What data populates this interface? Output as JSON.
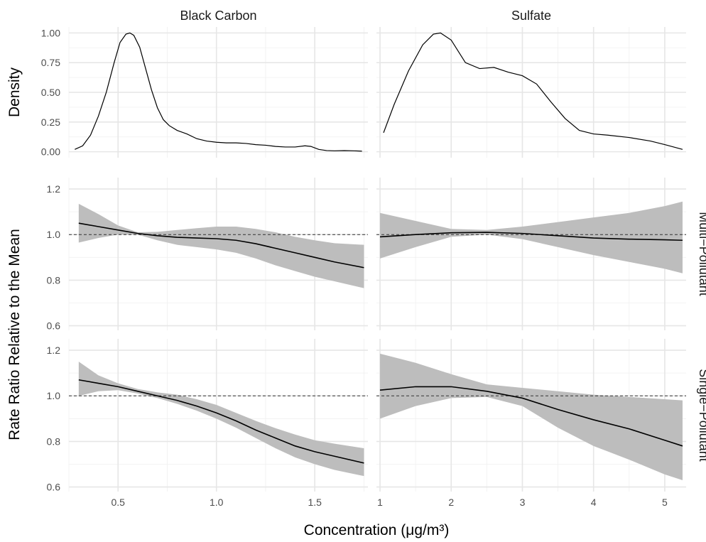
{
  "chart_data": {
    "type": "line",
    "xlabel": "Concentration (μg/m³)",
    "ylabel_density": "Density",
    "ylabel_ratio": "Rate Ratio Relative to the Mean",
    "colors": {
      "band": "#bdbdbd",
      "line": "#000000",
      "grid": "#e6e6e6"
    },
    "columns": [
      {
        "name": "Black Carbon",
        "xlim": [
          0.25,
          1.77
        ],
        "xticks": [
          0.5,
          1.0,
          1.5
        ],
        "xtick_labels": [
          "0.5",
          "1.0",
          "1.5"
        ]
      },
      {
        "name": "Sulfate",
        "xlim": [
          0.95,
          5.3
        ],
        "xticks": [
          1,
          2,
          3,
          4,
          5
        ],
        "xtick_labels": [
          "1",
          "2",
          "3",
          "4",
          "5"
        ]
      }
    ],
    "rows": [
      {
        "name": "Density",
        "ylim": [
          -0.05,
          1.05
        ],
        "yticks": [
          0,
          0.25,
          0.5,
          0.75,
          1.0
        ],
        "ytick_labels": [
          "0.00",
          "0.25",
          "0.50",
          "0.75",
          "1.00"
        ],
        "strip": ""
      },
      {
        "name": "Multi-Pollutant",
        "ylim": [
          0.58,
          1.25
        ],
        "yticks": [
          0.6,
          0.8,
          1.0,
          1.2
        ],
        "ytick_labels": [
          "0.6",
          "0.8",
          "1.0",
          "1.2"
        ],
        "strip": "Multi−Pollutant",
        "reference": 1.0
      },
      {
        "name": "Single-Pollutant",
        "ylim": [
          0.58,
          1.25
        ],
        "yticks": [
          0.6,
          0.8,
          1.0,
          1.2
        ],
        "ytick_labels": [
          "0.6",
          "0.8",
          "1.0",
          "1.2"
        ],
        "strip": "Single−Pollutant",
        "reference": 1.0
      }
    ],
    "density": [
      {
        "x": [
          0.28,
          0.32,
          0.36,
          0.4,
          0.44,
          0.48,
          0.51,
          0.54,
          0.56,
          0.58,
          0.61,
          0.64,
          0.67,
          0.7,
          0.73,
          0.76,
          0.8,
          0.85,
          0.9,
          0.95,
          1.0,
          1.05,
          1.1,
          1.15,
          1.2,
          1.25,
          1.3,
          1.35,
          1.4,
          1.45,
          1.48,
          1.52,
          1.56,
          1.6,
          1.65,
          1.7,
          1.74
        ],
        "y": [
          0.02,
          0.05,
          0.14,
          0.3,
          0.5,
          0.75,
          0.92,
          0.99,
          1.0,
          0.98,
          0.88,
          0.7,
          0.52,
          0.37,
          0.27,
          0.22,
          0.18,
          0.15,
          0.11,
          0.09,
          0.08,
          0.075,
          0.075,
          0.07,
          0.06,
          0.055,
          0.045,
          0.04,
          0.04,
          0.05,
          0.045,
          0.02,
          0.01,
          0.008,
          0.01,
          0.008,
          0.005
        ]
      },
      {
        "x": [
          1.05,
          1.2,
          1.4,
          1.6,
          1.75,
          1.85,
          2.0,
          2.2,
          2.4,
          2.6,
          2.8,
          3.0,
          3.2,
          3.4,
          3.6,
          3.8,
          4.0,
          4.2,
          4.5,
          4.8,
          5.0,
          5.25
        ],
        "y": [
          0.16,
          0.4,
          0.68,
          0.9,
          0.99,
          1.0,
          0.94,
          0.75,
          0.7,
          0.71,
          0.67,
          0.64,
          0.57,
          0.42,
          0.28,
          0.18,
          0.15,
          0.14,
          0.12,
          0.09,
          0.06,
          0.02
        ]
      }
    ],
    "panels": [
      {
        "column": "Black Carbon",
        "row": "Multi-Pollutant",
        "x": [
          0.3,
          0.4,
          0.5,
          0.6,
          0.7,
          0.8,
          0.9,
          1.0,
          1.1,
          1.2,
          1.3,
          1.4,
          1.5,
          1.6,
          1.75
        ],
        "fit": [
          1.05,
          1.035,
          1.02,
          1.005,
          0.995,
          0.988,
          0.985,
          0.982,
          0.975,
          0.96,
          0.94,
          0.92,
          0.9,
          0.88,
          0.855
        ],
        "lower": [
          0.965,
          0.985,
          1.0,
          1.0,
          0.975,
          0.955,
          0.945,
          0.935,
          0.92,
          0.895,
          0.865,
          0.84,
          0.815,
          0.795,
          0.765
        ],
        "upper": [
          1.135,
          1.09,
          1.04,
          1.01,
          1.012,
          1.02,
          1.028,
          1.035,
          1.035,
          1.025,
          1.01,
          0.99,
          0.975,
          0.962,
          0.955
        ]
      },
      {
        "column": "Sulfate",
        "row": "Multi-Pollutant",
        "x": [
          1.0,
          1.5,
          2.0,
          2.5,
          3.0,
          3.5,
          4.0,
          4.5,
          5.0,
          5.25
        ],
        "fit": [
          0.99,
          1.0,
          1.008,
          1.01,
          1.005,
          0.995,
          0.985,
          0.98,
          0.977,
          0.975
        ],
        "lower": [
          0.895,
          0.945,
          0.99,
          1.0,
          0.98,
          0.945,
          0.91,
          0.88,
          0.85,
          0.83
        ],
        "upper": [
          1.095,
          1.06,
          1.025,
          1.02,
          1.035,
          1.055,
          1.075,
          1.095,
          1.125,
          1.145
        ]
      },
      {
        "column": "Black Carbon",
        "row": "Single-Pollutant",
        "x": [
          0.3,
          0.4,
          0.5,
          0.6,
          0.7,
          0.8,
          0.9,
          1.0,
          1.1,
          1.2,
          1.3,
          1.4,
          1.5,
          1.6,
          1.75
        ],
        "fit": [
          1.07,
          1.055,
          1.04,
          1.02,
          1.0,
          0.98,
          0.955,
          0.925,
          0.89,
          0.85,
          0.815,
          0.78,
          0.755,
          0.735,
          0.705
        ],
        "lower": [
          1.0,
          1.02,
          1.025,
          1.01,
          0.99,
          0.965,
          0.935,
          0.9,
          0.86,
          0.815,
          0.77,
          0.73,
          0.7,
          0.675,
          0.648
        ],
        "upper": [
          1.15,
          1.09,
          1.055,
          1.03,
          1.015,
          1.005,
          0.985,
          0.96,
          0.925,
          0.89,
          0.858,
          0.83,
          0.805,
          0.79,
          0.77
        ]
      },
      {
        "column": "Sulfate",
        "row": "Single-Pollutant",
        "x": [
          1.0,
          1.5,
          2.0,
          2.5,
          3.0,
          3.5,
          4.0,
          4.5,
          5.0,
          5.25
        ],
        "fit": [
          1.025,
          1.04,
          1.04,
          1.02,
          0.99,
          0.94,
          0.895,
          0.855,
          0.805,
          0.78
        ],
        "lower": [
          0.9,
          0.955,
          0.99,
          0.995,
          0.955,
          0.86,
          0.78,
          0.72,
          0.655,
          0.63
        ],
        "upper": [
          1.185,
          1.145,
          1.095,
          1.05,
          1.035,
          1.02,
          1.005,
          0.995,
          0.985,
          0.98
        ]
      }
    ]
  }
}
